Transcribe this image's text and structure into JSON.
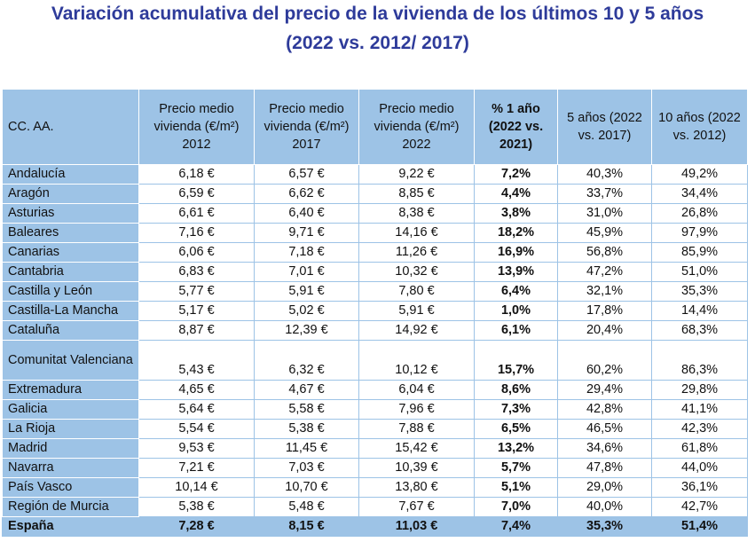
{
  "title_line1": "Variación acumulativa del precio de la vivienda de los últimos 10 y 5 años",
  "title_line2": "(2022 vs. 2012/ 2017)",
  "headers": [
    "CC. AA.",
    "Precio medio vivienda (€/m²) 2012",
    "Precio medio vivienda (€/m²) 2017",
    "Precio medio vivienda (€/m²) 2022",
    "% 1 año (2022 vs. 2021)",
    "5 años (2022 vs. 2017)",
    "10 años (2022 vs. 2012)"
  ],
  "rows": [
    [
      "Andalucía",
      "6,18 €",
      "6,57 €",
      "9,22 €",
      "7,2%",
      "40,3%",
      "49,2%"
    ],
    [
      "Aragón",
      "6,59 €",
      "6,62 €",
      "8,85 €",
      "4,4%",
      "33,7%",
      "34,4%"
    ],
    [
      "Asturias",
      "6,61 €",
      "6,40 €",
      "8,38 €",
      "3,8%",
      "31,0%",
      "26,8%"
    ],
    [
      "Baleares",
      "7,16 €",
      "9,71 €",
      "14,16 €",
      "18,2%",
      "45,9%",
      "97,9%"
    ],
    [
      "Canarias",
      "6,06 €",
      "7,18 €",
      "11,26 €",
      "16,9%",
      "56,8%",
      "85,9%"
    ],
    [
      "Cantabria",
      "6,83 €",
      "7,01 €",
      "10,32 €",
      "13,9%",
      "47,2%",
      "51,0%"
    ],
    [
      "Castilla y León",
      "5,77 €",
      "5,91 €",
      "7,80 €",
      "6,4%",
      "32,1%",
      "35,3%"
    ],
    [
      "Castilla-La Mancha",
      "5,17 €",
      "5,02 €",
      "5,91 €",
      "1,0%",
      "17,8%",
      "14,4%"
    ],
    [
      "Cataluña",
      "8,87 €",
      "12,39 €",
      "14,92 €",
      "6,1%",
      "20,4%",
      "68,3%"
    ],
    [
      "Comunitat Valenciana",
      "5,43 €",
      "6,32 €",
      "10,12 €",
      "15,7%",
      "60,2%",
      "86,3%"
    ],
    [
      "Extremadura",
      "4,65 €",
      "4,67 €",
      "6,04 €",
      "8,6%",
      "29,4%",
      "29,8%"
    ],
    [
      "Galicia",
      "5,64 €",
      "5,58 €",
      "7,96 €",
      "7,3%",
      "42,8%",
      "41,1%"
    ],
    [
      "La Rioja",
      "5,54 €",
      "5,38 €",
      "7,88 €",
      "6,5%",
      "46,5%",
      "42,3%"
    ],
    [
      "Madrid",
      "9,53 €",
      "11,45 €",
      "15,42 €",
      "13,2%",
      "34,6%",
      "61,8%"
    ],
    [
      "Navarra",
      "7,21 €",
      "7,03 €",
      "10,39 €",
      "5,7%",
      "47,8%",
      "44,0%"
    ],
    [
      "País Vasco",
      "10,14 €",
      "10,70 €",
      "13,80 €",
      "5,1%",
      "29,0%",
      "36,1%"
    ],
    [
      "Región de Murcia",
      "5,38 €",
      "5,48 €",
      "7,67 €",
      "7,0%",
      "40,0%",
      "42,7%"
    ]
  ],
  "total": [
    "España",
    "7,28 €",
    "8,15 €",
    "11,03 €",
    "7,4%",
    "35,3%",
    "51,4%"
  ]
}
